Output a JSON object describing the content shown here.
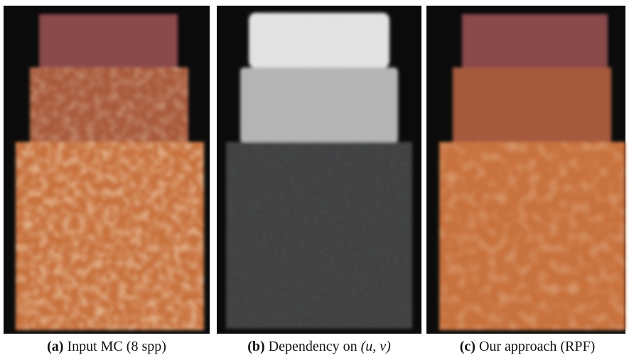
{
  "panels": [
    {
      "tag": "(a)",
      "caption": "Input MC (8 spp)"
    },
    {
      "tag": "(b)",
      "caption": "Dependency on",
      "math": "(u, v)"
    },
    {
      "tag": "(c)",
      "caption": "Our approach (RPF)"
    }
  ]
}
